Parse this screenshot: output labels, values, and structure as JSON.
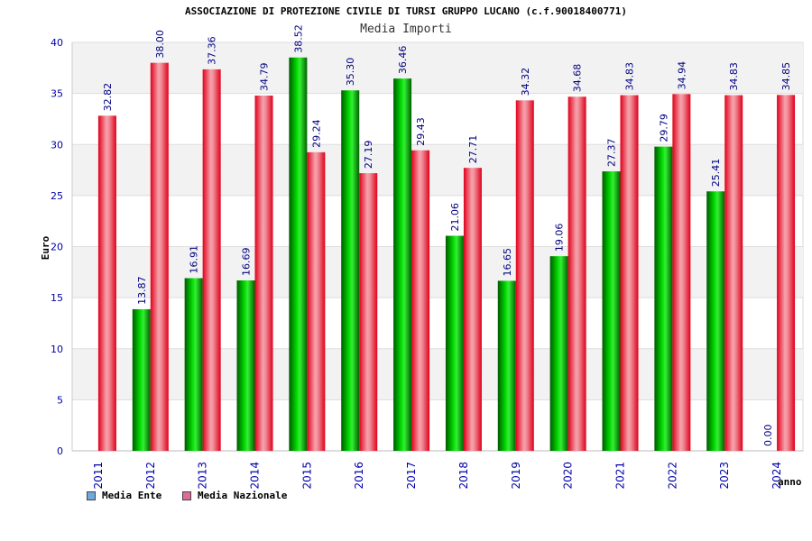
{
  "header": {
    "title": "ASSOCIAZIONE DI PROTEZIONE CIVILE DI TURSI GRUPPO LUCANO (c.f.90018400771)",
    "subtitle": "Media Importi"
  },
  "legend": {
    "items": [
      {
        "label": "Media Ente",
        "color": "#6fa8dc"
      },
      {
        "label": "Media Nazionale",
        "color": "#e06a9a"
      }
    ]
  },
  "chart_data": {
    "type": "bar",
    "title": "ASSOCIAZIONE DI PROTEZIONE CIVILE DI TURSI GRUPPO LUCANO (c.f.90018400771)",
    "subtitle": "Media Importi",
    "xlabel": "anno",
    "ylabel": "Euro",
    "ylim": [
      0,
      40
    ],
    "yticks": [
      0,
      5,
      10,
      15,
      20,
      25,
      30,
      35,
      40
    ],
    "grid": true,
    "legend_position": "bottom-left",
    "categories": [
      "2011",
      "2012",
      "2013",
      "2014",
      "2015",
      "2016",
      "2017",
      "2018",
      "2019",
      "2020",
      "2021",
      "2022",
      "2023",
      "2024"
    ],
    "series": [
      {
        "name": "Media Ente",
        "color": "#00c000",
        "values": [
          null,
          13.87,
          16.91,
          16.69,
          38.52,
          35.3,
          36.46,
          21.06,
          16.65,
          19.06,
          27.37,
          29.79,
          25.41,
          0.0
        ],
        "labels": [
          "",
          "13.87",
          "16.91",
          "16.69",
          "38.52",
          "35.30",
          "36.46",
          "21.06",
          "16.65",
          "19.06",
          "27.37",
          "29.79",
          "25.41",
          "0.00"
        ]
      },
      {
        "name": "Media Nazionale",
        "color": "#ee1c2c",
        "values": [
          32.82,
          38.0,
          37.36,
          34.79,
          29.24,
          27.19,
          29.43,
          27.71,
          34.32,
          34.68,
          34.83,
          34.94,
          34.83,
          34.85
        ],
        "labels": [
          "32.82",
          "38.00",
          "37.36",
          "34.79",
          "29.24",
          "27.19",
          "29.43",
          "27.71",
          "34.32",
          "34.68",
          "34.83",
          "34.94",
          "34.83",
          "34.85"
        ]
      }
    ]
  }
}
